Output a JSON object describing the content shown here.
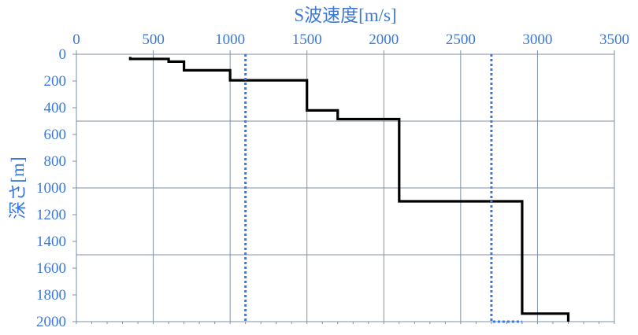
{
  "chart_data": {
    "type": "line",
    "title": "",
    "xlabel": "S波速度[m/s]",
    "ylabel": "深さ[m]",
    "xlim": [
      0,
      3500
    ],
    "ylim": [
      0,
      2000
    ],
    "y_inverted": true,
    "x_axis_position": "top",
    "x_ticks": [
      "0",
      "500",
      "1000",
      "1500",
      "2000",
      "2500",
      "3000",
      "3500"
    ],
    "y_ticks": [
      "0",
      "200",
      "400",
      "600",
      "800",
      "1000",
      "1200",
      "1400",
      "1600",
      "1800",
      "2000"
    ],
    "gridlines_x": [
      0,
      500,
      1000,
      1500,
      2000,
      2500,
      3000,
      3500
    ],
    "gridlines_y": [
      500,
      1000,
      1500,
      2000
    ],
    "series": [
      {
        "style": "solid",
        "color": "#000000",
        "points": [
          [
            350,
            20
          ],
          [
            350,
            35
          ],
          [
            600,
            35
          ],
          [
            600,
            55
          ],
          [
            700,
            55
          ],
          [
            700,
            120
          ],
          [
            1000,
            120
          ],
          [
            1000,
            195
          ],
          [
            1500,
            195
          ],
          [
            1500,
            420
          ],
          [
            1700,
            420
          ],
          [
            1700,
            485
          ],
          [
            2100,
            485
          ],
          [
            2100,
            1100
          ],
          [
            2900,
            1100
          ],
          [
            2900,
            1940
          ],
          [
            3200,
            1940
          ],
          [
            3200,
            2000
          ]
        ]
      },
      {
        "style": "dotted",
        "color": "#3b78d8",
        "points": [
          [
            1100,
            0
          ],
          [
            1100,
            2000
          ]
        ]
      },
      {
        "style": "dotted",
        "color": "#3b78d8",
        "points": [
          [
            2700,
            0
          ],
          [
            2700,
            2000
          ],
          [
            2900,
            2000
          ]
        ]
      }
    ],
    "colors": {
      "axis_text": "#3b78d8",
      "grid": "#7f8fa6",
      "axis": "#7f8fa6"
    }
  }
}
